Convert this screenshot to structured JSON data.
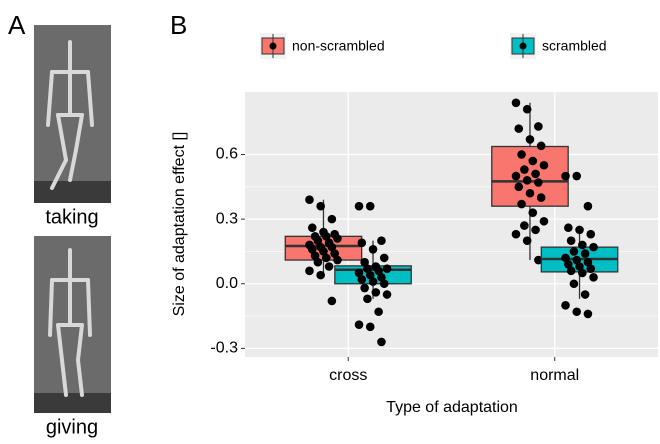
{
  "panel_a": {
    "label": "A",
    "captions": [
      "taking",
      "giving"
    ]
  },
  "chart_data": {
    "type": "box",
    "panel_label": "B",
    "x_label": "Type of adaptation",
    "y_label": "Size of adaptation effect []",
    "categories": [
      "cross",
      "normal"
    ],
    "ylim": [
      -0.34,
      0.89
    ],
    "yticks": [
      -0.3,
      0.0,
      0.3,
      0.6
    ],
    "grid": true,
    "legend_position": "top",
    "background": "#ebebeb",
    "series": [
      {
        "name": "non-scrambled",
        "color": "#f8766d",
        "boxes": [
          {
            "low": 0.03,
            "q1": 0.11,
            "median": 0.175,
            "q3": 0.22,
            "high": 0.39
          },
          {
            "low": 0.11,
            "q1": 0.36,
            "median": 0.475,
            "q3": 0.637,
            "high": 0.84
          }
        ],
        "points": [
          [
            0.39,
            0.36,
            0.3,
            0.26,
            0.24,
            0.23,
            0.22,
            0.22,
            0.21,
            0.2,
            0.19,
            0.18,
            0.17,
            0.17,
            0.16,
            0.15,
            0.14,
            0.13,
            0.12,
            0.11,
            0.1,
            0.08,
            0.06,
            0.04,
            -0.08
          ],
          [
            0.84,
            0.81,
            0.73,
            0.72,
            0.67,
            0.64,
            0.6,
            0.57,
            0.55,
            0.53,
            0.51,
            0.5,
            0.48,
            0.47,
            0.45,
            0.42,
            0.4,
            0.37,
            0.33,
            0.29,
            0.27,
            0.25,
            0.23,
            0.2,
            0.11
          ]
        ]
      },
      {
        "name": "scrambled",
        "color": "#00bfc4",
        "boxes": [
          {
            "low": -0.07,
            "q1": 0.0,
            "median": 0.065,
            "q3": 0.083,
            "high": 0.2
          },
          {
            "low": -0.07,
            "q1": 0.055,
            "median": 0.115,
            "q3": 0.17,
            "high": 0.26
          }
        ],
        "points": [
          [
            0.36,
            0.36,
            0.2,
            0.19,
            0.16,
            0.12,
            0.1,
            0.08,
            0.07,
            0.07,
            0.06,
            0.05,
            0.04,
            0.03,
            0.02,
            0.01,
            0,
            -0.02,
            -0.04,
            -0.05,
            -0.07,
            -0.13,
            -0.19,
            -0.2,
            -0.27
          ],
          [
            0.5,
            0.5,
            0.36,
            0.26,
            0.25,
            0.23,
            0.2,
            0.18,
            0.17,
            0.15,
            0.14,
            0.12,
            0.11,
            0.1,
            0.09,
            0.08,
            0.07,
            0.06,
            0.05,
            0.03,
            0.0,
            -0.05,
            -0.1,
            -0.13,
            -0.14
          ]
        ]
      }
    ]
  }
}
